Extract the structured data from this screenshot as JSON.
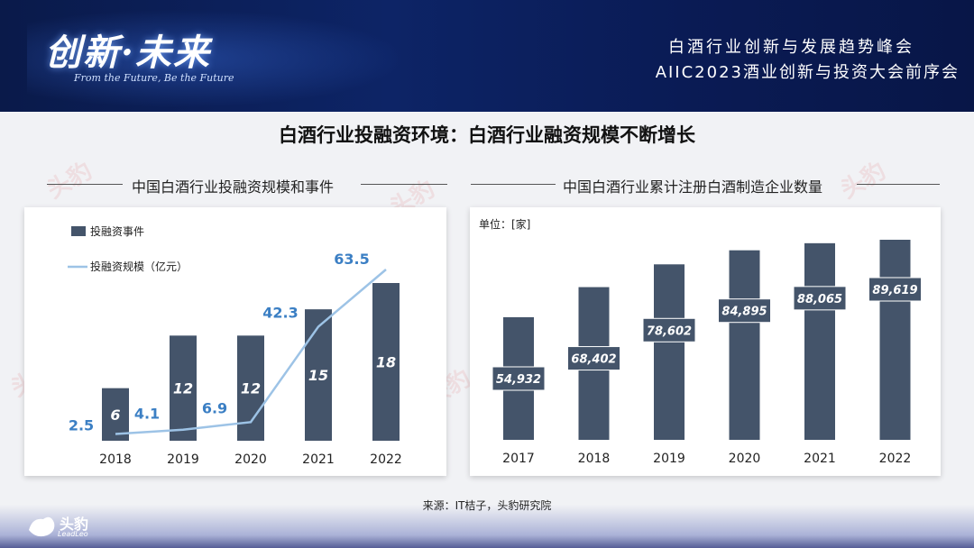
{
  "banner": {
    "logo_text": "创新·未来",
    "logo_sub": "From the Future, Be the Future",
    "conf_title_1": "白酒行业创新与发展趋势峰会",
    "conf_title_2": "AIIC2023酒业创新与投资大会前序会"
  },
  "main_title": "白酒行业投融资环境：白酒行业融资规模不断增长",
  "watermark_text": "头豹",
  "source": "来源：IT桔子，头豹研究院",
  "brand": {
    "name": "头豹",
    "sub": "LeadLeo"
  },
  "chart_data": [
    {
      "type": "bar",
      "title": "中国白酒行业投融资规模和事件",
      "categories": [
        "2018",
        "2019",
        "2020",
        "2021",
        "2022"
      ],
      "series": [
        {
          "name": "投融资事件",
          "type": "bar",
          "values": [
            6,
            12,
            12,
            15,
            18
          ],
          "color": "#44546a"
        },
        {
          "name": "投融资规模（亿元）",
          "type": "line",
          "values": [
            2.5,
            4.1,
            6.9,
            42.3,
            63.5
          ],
          "color": "#9dc3e6"
        }
      ],
      "legend_position": "top-left",
      "grid": false
    },
    {
      "type": "bar",
      "title": "中国白酒行业累计注册白酒制造企业数量",
      "unit_label": "单位：[家]",
      "categories": [
        "2017",
        "2018",
        "2019",
        "2020",
        "2021",
        "2022"
      ],
      "series": [
        {
          "values": [
            54932,
            68402,
            78602,
            84895,
            88065,
            89619
          ],
          "labels": [
            "54,932",
            "68,402",
            "78,602",
            "84,895",
            "88,065",
            "89,619"
          ],
          "color": "#44546a"
        }
      ],
      "grid": false
    }
  ]
}
